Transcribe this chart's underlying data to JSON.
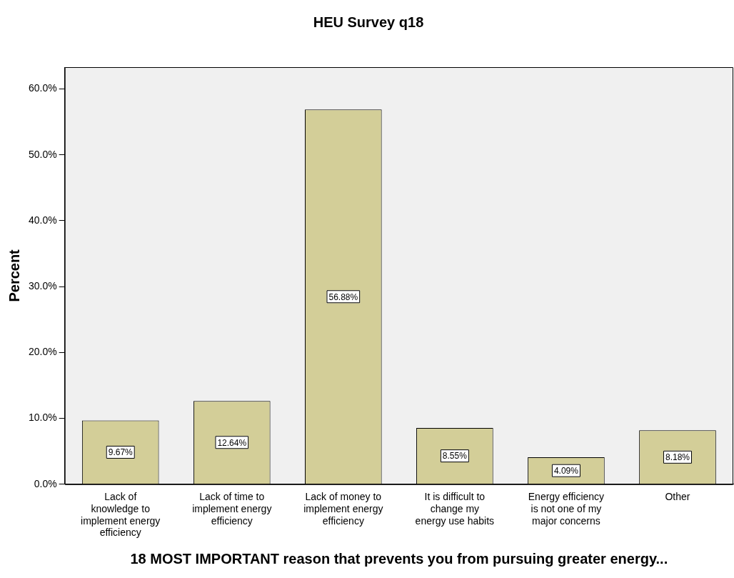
{
  "chart_data": {
    "type": "bar",
    "title": "HEU Survey q18",
    "xlabel": "18 MOST IMPORTANT reason that prevents you from pursuing greater energy...",
    "ylabel": "Percent",
    "categories": [
      "Lack of knowledge to implement energy efficiency",
      "Lack of time to implement energy efficiency",
      "Lack of money to implement energy efficiency",
      "It is difficult to change my energy use habits",
      "Energy efficiency is not one of my major concerns",
      "Other"
    ],
    "values": [
      9.67,
      12.64,
      56.88,
      8.55,
      4.09,
      8.18
    ],
    "value_labels": [
      "9.67%",
      "12.64%",
      "56.88%",
      "8.55%",
      "4.09%",
      "8.18%"
    ],
    "color": "#d3ce98",
    "ylim": [
      0,
      63.3
    ],
    "yticks": [
      {
        "value": 0,
        "label": "0.0%"
      },
      {
        "value": 10,
        "label": "10.0%"
      },
      {
        "value": 20,
        "label": "20.0%"
      },
      {
        "value": 30,
        "label": "30.0%"
      },
      {
        "value": 40,
        "label": "40.0%"
      },
      {
        "value": 50,
        "label": "50.0%"
      },
      {
        "value": 60,
        "label": "60.0%"
      }
    ],
    "grid": false,
    "legend": false
  }
}
